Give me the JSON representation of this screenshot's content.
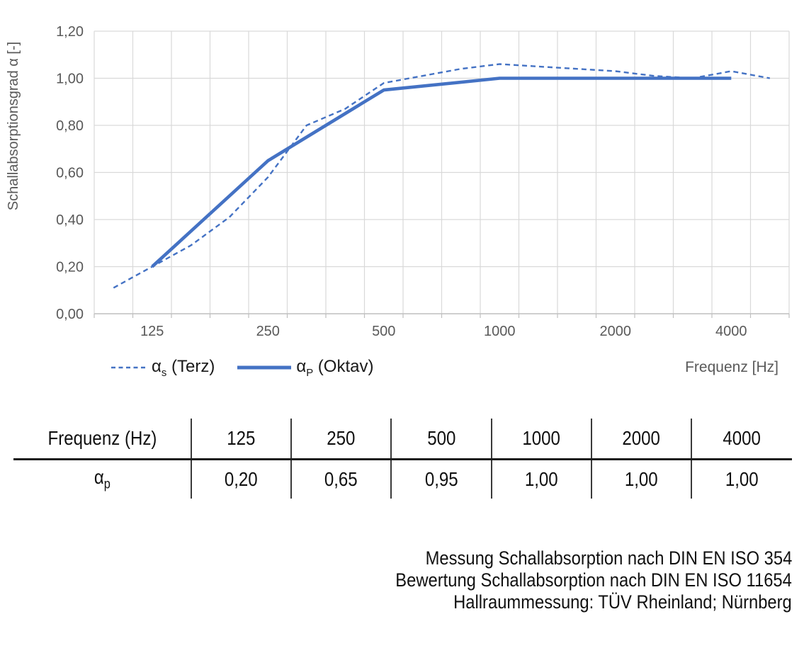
{
  "chart_data": {
    "type": "line",
    "title": "",
    "ylabel": "Schallabsorptionsgrad α [-]",
    "xlabel": "Frequenz [Hz]",
    "ylim": [
      0,
      1.2
    ],
    "grid": true,
    "y_ticks": [
      {
        "value": 0.0,
        "label": "0,00"
      },
      {
        "value": 0.2,
        "label": "0,20"
      },
      {
        "value": 0.4,
        "label": "0,40"
      },
      {
        "value": 0.6,
        "label": "0,60"
      },
      {
        "value": 0.8,
        "label": "0,80"
      },
      {
        "value": 1.0,
        "label": "1,00"
      },
      {
        "value": 1.2,
        "label": "1,20"
      }
    ],
    "x_slots": [
      "100",
      "125",
      "160",
      "200",
      "250",
      "315",
      "400",
      "500",
      "630",
      "800",
      "1000",
      "1250",
      "1600",
      "2000",
      "2500",
      "3150",
      "4000",
      "5000"
    ],
    "x_tick_labels": [
      {
        "label": "125",
        "slot": 1
      },
      {
        "label": "250",
        "slot": 4
      },
      {
        "label": "500",
        "slot": 7
      },
      {
        "label": "1000",
        "slot": 10
      },
      {
        "label": "2000",
        "slot": 13
      },
      {
        "label": "4000",
        "slot": 16
      }
    ],
    "series": [
      {
        "name": "αs (Terz)",
        "style": "dashed",
        "slots": [
          0,
          1,
          2,
          3,
          4,
          5,
          6,
          7,
          8,
          9,
          10,
          11,
          12,
          13,
          14,
          15,
          16,
          17
        ],
        "values": [
          0.11,
          0.2,
          0.29,
          0.41,
          0.58,
          0.8,
          0.87,
          0.98,
          1.01,
          1.04,
          1.06,
          1.05,
          1.04,
          1.03,
          1.01,
          1.0,
          1.03,
          1.0
        ]
      },
      {
        "name": "αP (Oktav)",
        "style": "solid",
        "slots": [
          1,
          4,
          7,
          10,
          13,
          16
        ],
        "values": [
          0.2,
          0.65,
          0.95,
          1.0,
          1.0,
          1.0
        ]
      }
    ],
    "colors": {
      "line": "#4472C4",
      "grid": "#D9D9D9",
      "axis": "#BFBFBF",
      "tick_text": "#595959"
    },
    "legend_position": "bottom-left"
  },
  "legend": {
    "items": [
      {
        "alpha": "α",
        "sub": "s",
        "text": " (Terz)"
      },
      {
        "alpha": "α",
        "sub": "P",
        "text": " (Oktav)"
      }
    ]
  },
  "xaxis_title": "Frequenz [Hz]",
  "table": {
    "header": [
      "Frequenz (Hz)",
      "125",
      "250",
      "500",
      "1000",
      "2000",
      "4000"
    ],
    "row_label": {
      "alpha": "α",
      "sub": "p"
    },
    "values": [
      "0,20",
      "0,65",
      "0,95",
      "1,00",
      "1,00",
      "1,00"
    ]
  },
  "notes": [
    "Messung Schallabsorption nach DIN EN ISO 354",
    "Bewertung Schallabsorption nach DIN EN ISO 11654",
    "Hallraummessung: TÜV Rheinland; Nürnberg"
  ]
}
